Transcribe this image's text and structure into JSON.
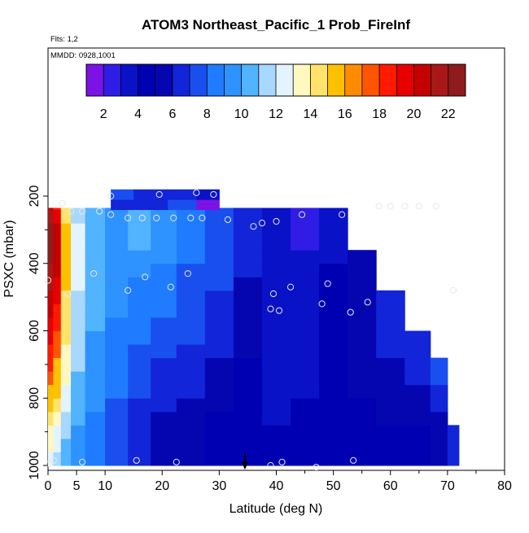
{
  "chart_data": {
    "type": "heatmap",
    "title": "ATOM3 Northeast_Pacific_1 Prob_FireInf",
    "note_flights": "Flts: 1,2",
    "note_dates": "MMDD: 0928,1001",
    "xlabel": "Latitude (deg N)",
    "ylabel": "PSXC (mbar)",
    "xlim": [
      0,
      80
    ],
    "ylim": [
      1000,
      0
    ],
    "x_ticks": [
      0,
      5,
      10,
      20,
      30,
      40,
      50,
      60,
      70,
      80
    ],
    "y_ticks": [
      200,
      400,
      600,
      800,
      1000
    ],
    "colorbar": {
      "range": [
        1,
        23
      ],
      "ticks": [
        2,
        4,
        6,
        8,
        10,
        12,
        14,
        16,
        18,
        20,
        22
      ],
      "colors": [
        "#7b12e6",
        "#2f1de6",
        "#0a12c8",
        "#0000b3",
        "#0606b0",
        "#1225d8",
        "#1a4fef",
        "#1f7bff",
        "#2f93ff",
        "#52b3ff",
        "#a8d8ff",
        "#e4f4ff",
        "#fff8c0",
        "#ffe36a",
        "#ffc000",
        "#ff8c00",
        "#ff5400",
        "#ff1a00",
        "#e60000",
        "#c40000",
        "#a81818",
        "#8e1c1c"
      ]
    },
    "marker": {
      "lat": 34.5,
      "label": "↓"
    },
    "columns": [
      {
        "lat": 0.3,
        "values": [
          12,
          13,
          13,
          14,
          15,
          16,
          17,
          18,
          18,
          19,
          19,
          20,
          20,
          21,
          21,
          22,
          22,
          22,
          21,
          20
        ]
      },
      {
        "lat": 1.5,
        "values": [
          11,
          12,
          12,
          13,
          14,
          15,
          15,
          16,
          17,
          17,
          18,
          18,
          19,
          19,
          20,
          20,
          20,
          20,
          19,
          18
        ]
      },
      {
        "lat": 3,
        "values": [
          10,
          10,
          11,
          11,
          12,
          12,
          13,
          13,
          13,
          14,
          14,
          14,
          14,
          15,
          15,
          15,
          15,
          15,
          14,
          14
        ]
      },
      {
        "lat": 5,
        "values": [
          9,
          9,
          9,
          10,
          10,
          10,
          10,
          11,
          11,
          11,
          11,
          11,
          11,
          12,
          12,
          12,
          12,
          12,
          11,
          11
        ]
      },
      {
        "lat": 8,
        "values": [
          8,
          8,
          8,
          8,
          9,
          9,
          9,
          9,
          9,
          9,
          10,
          10,
          10,
          10,
          10,
          10,
          10,
          10,
          10,
          10
        ]
      },
      {
        "lat": 12,
        "values": [
          7,
          7,
          7,
          7,
          7,
          8,
          8,
          8,
          8,
          8,
          8,
          9,
          9,
          9,
          9,
          9,
          9,
          9,
          9,
          9
        ]
      },
      {
        "lat": 16,
        "values": [
          6,
          6,
          6,
          6,
          6,
          7,
          7,
          7,
          7,
          8,
          8,
          8,
          8,
          8,
          9,
          9,
          10,
          10,
          10,
          9
        ]
      },
      {
        "lat": 20,
        "values": [
          5,
          5,
          5,
          5,
          6,
          6,
          6,
          6,
          7,
          7,
          7,
          8,
          8,
          8,
          8,
          9,
          9,
          9,
          9,
          8
        ]
      },
      {
        "lat": 25,
        "values": [
          5,
          5,
          5,
          5,
          5,
          6,
          6,
          6,
          6,
          7,
          7,
          7,
          7,
          7,
          7,
          8,
          8,
          8,
          8,
          7
        ]
      },
      {
        "lat": 30,
        "values": [
          4,
          4,
          4,
          4,
          5,
          5,
          5,
          5,
          6,
          6,
          6,
          6,
          6,
          7,
          7,
          7,
          7,
          7,
          7,
          7
        ]
      },
      {
        "lat": 35,
        "values": [
          4,
          4,
          4,
          4,
          4,
          4,
          4,
          4,
          5,
          5,
          5,
          5,
          5,
          5,
          6,
          6,
          6,
          6,
          6,
          6
        ]
      },
      {
        "lat": 40,
        "values": [
          4,
          4,
          4,
          3,
          3,
          3,
          3,
          3,
          3,
          3,
          3,
          3,
          3,
          3,
          3,
          3,
          3,
          3,
          3,
          3
        ]
      },
      {
        "lat": 45,
        "values": [
          4,
          4,
          4,
          4,
          4,
          3,
          3,
          3,
          3,
          3,
          3,
          3,
          3,
          3,
          3,
          3,
          2,
          2,
          2,
          2
        ]
      },
      {
        "lat": 50,
        "values": [
          4,
          4,
          4,
          4,
          4,
          4,
          4,
          4,
          4,
          4,
          4,
          4,
          4,
          4,
          4,
          3,
          3,
          3,
          3,
          3
        ]
      },
      {
        "lat": 55,
        "values": [
          4,
          4,
          4,
          4,
          4,
          5,
          5,
          5,
          5,
          5,
          5,
          5,
          5,
          5,
          5,
          5
        ]
      },
      {
        "lat": 60,
        "values": [
          4,
          4,
          4,
          5,
          5,
          5,
          5,
          5,
          6,
          6,
          6,
          6,
          6
        ]
      },
      {
        "lat": 65,
        "values": [
          4,
          4,
          4,
          5,
          5,
          5,
          6,
          6,
          6,
          6
        ]
      },
      {
        "lat": 69,
        "values": [
          5,
          5,
          5,
          5,
          6,
          6,
          7,
          7
        ]
      },
      {
        "lat": 71,
        "values": [
          6,
          6,
          6
        ]
      }
    ],
    "top_strip": [
      {
        "lat": 12,
        "values": [
          6,
          7
        ]
      },
      {
        "lat": 18,
        "values": [
          6,
          6
        ]
      },
      {
        "lat": 24,
        "values": [
          7,
          6
        ]
      },
      {
        "lat": 28,
        "values": [
          1,
          3
        ]
      }
    ],
    "points": [
      {
        "lat": 11,
        "p": 200
      },
      {
        "lat": 19.5,
        "p": 195
      },
      {
        "lat": 26,
        "p": 190
      },
      {
        "lat": 29,
        "p": 195
      },
      {
        "lat": 2.5,
        "p": 222
      },
      {
        "lat": 4,
        "p": 245
      },
      {
        "lat": 6,
        "p": 245
      },
      {
        "lat": 9,
        "p": 245
      },
      {
        "lat": 11,
        "p": 255
      },
      {
        "lat": 14,
        "p": 265
      },
      {
        "lat": 16.5,
        "p": 265
      },
      {
        "lat": 19,
        "p": 265
      },
      {
        "lat": 22,
        "p": 265
      },
      {
        "lat": 25,
        "p": 265
      },
      {
        "lat": 27,
        "p": 265
      },
      {
        "lat": 31.5,
        "p": 270
      },
      {
        "lat": 36,
        "p": 290
      },
      {
        "lat": 37.5,
        "p": 280
      },
      {
        "lat": 40,
        "p": 275
      },
      {
        "lat": 44.5,
        "p": 255
      },
      {
        "lat": 51.5,
        "p": 255
      },
      {
        "lat": 58,
        "p": 230
      },
      {
        "lat": 60,
        "p": 230
      },
      {
        "lat": 62.5,
        "p": 230
      },
      {
        "lat": 65,
        "p": 230
      },
      {
        "lat": 68,
        "p": 230
      },
      {
        "lat": 8,
        "p": 430
      },
      {
        "lat": 17,
        "p": 440
      },
      {
        "lat": 24.5,
        "p": 430
      },
      {
        "lat": 0,
        "p": 450
      },
      {
        "lat": 3.5,
        "p": 490
      },
      {
        "lat": 14,
        "p": 480
      },
      {
        "lat": 21.5,
        "p": 470
      },
      {
        "lat": 39.5,
        "p": 490
      },
      {
        "lat": 42.5,
        "p": 470
      },
      {
        "lat": 48,
        "p": 520
      },
      {
        "lat": 49,
        "p": 460
      },
      {
        "lat": 53,
        "p": 545
      },
      {
        "lat": 56,
        "p": 515
      },
      {
        "lat": 39,
        "p": 535
      },
      {
        "lat": 40.5,
        "p": 540
      },
      {
        "lat": 71,
        "p": 480
      },
      {
        "lat": 1,
        "p": 985
      },
      {
        "lat": 0.3,
        "p": 995
      },
      {
        "lat": 6,
        "p": 990
      },
      {
        "lat": 15.5,
        "p": 985
      },
      {
        "lat": 22.5,
        "p": 990
      },
      {
        "lat": 39,
        "p": 1000
      },
      {
        "lat": 41,
        "p": 990
      },
      {
        "lat": 47,
        "p": 1005
      },
      {
        "lat": 53.5,
        "p": 985
      }
    ]
  }
}
